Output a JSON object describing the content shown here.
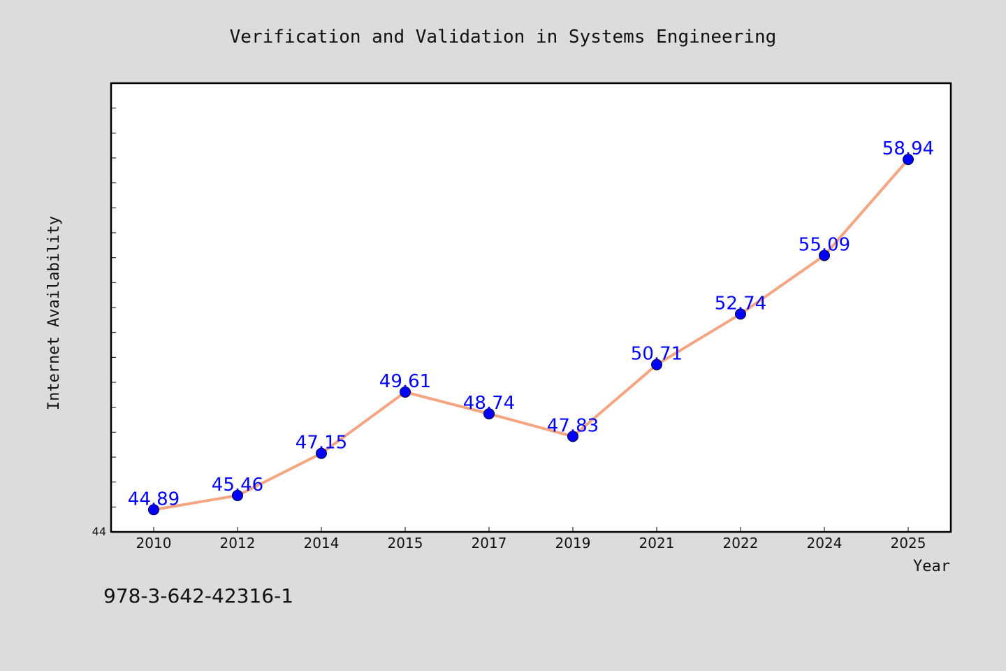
{
  "chart_data": {
    "type": "line",
    "title": "Verification and Validation in Systems Engineering",
    "xlabel": "Year",
    "ylabel": "Internet Availability",
    "categories": [
      "2010",
      "2012",
      "2014",
      "2015",
      "2017",
      "2019",
      "2021",
      "2022",
      "2024",
      "2025"
    ],
    "series": [
      {
        "values": [
          44.89,
          45.46,
          47.15,
          49.61,
          48.74,
          47.83,
          50.71,
          52.74,
          55.09,
          58.94
        ],
        "data_labels": [
          "44.89",
          "45.46",
          "47.15",
          "49.61",
          "48.74",
          "47.83",
          "50.71",
          "52.74",
          "55.09",
          "58.94"
        ],
        "line_color": "#f4a582",
        "marker_color": "#0000ff"
      }
    ],
    "ylim": [
      44,
      62
    ],
    "y_tick_labels": [
      "44"
    ],
    "grid": false,
    "legend": "none",
    "footnote": "978-3-642-42316-1",
    "colors": {
      "background": "#dcdcdc",
      "plot_background": "#ffffff",
      "line": "#f4a582",
      "marker": "#0000ff",
      "data_label": "#0000ff"
    }
  }
}
